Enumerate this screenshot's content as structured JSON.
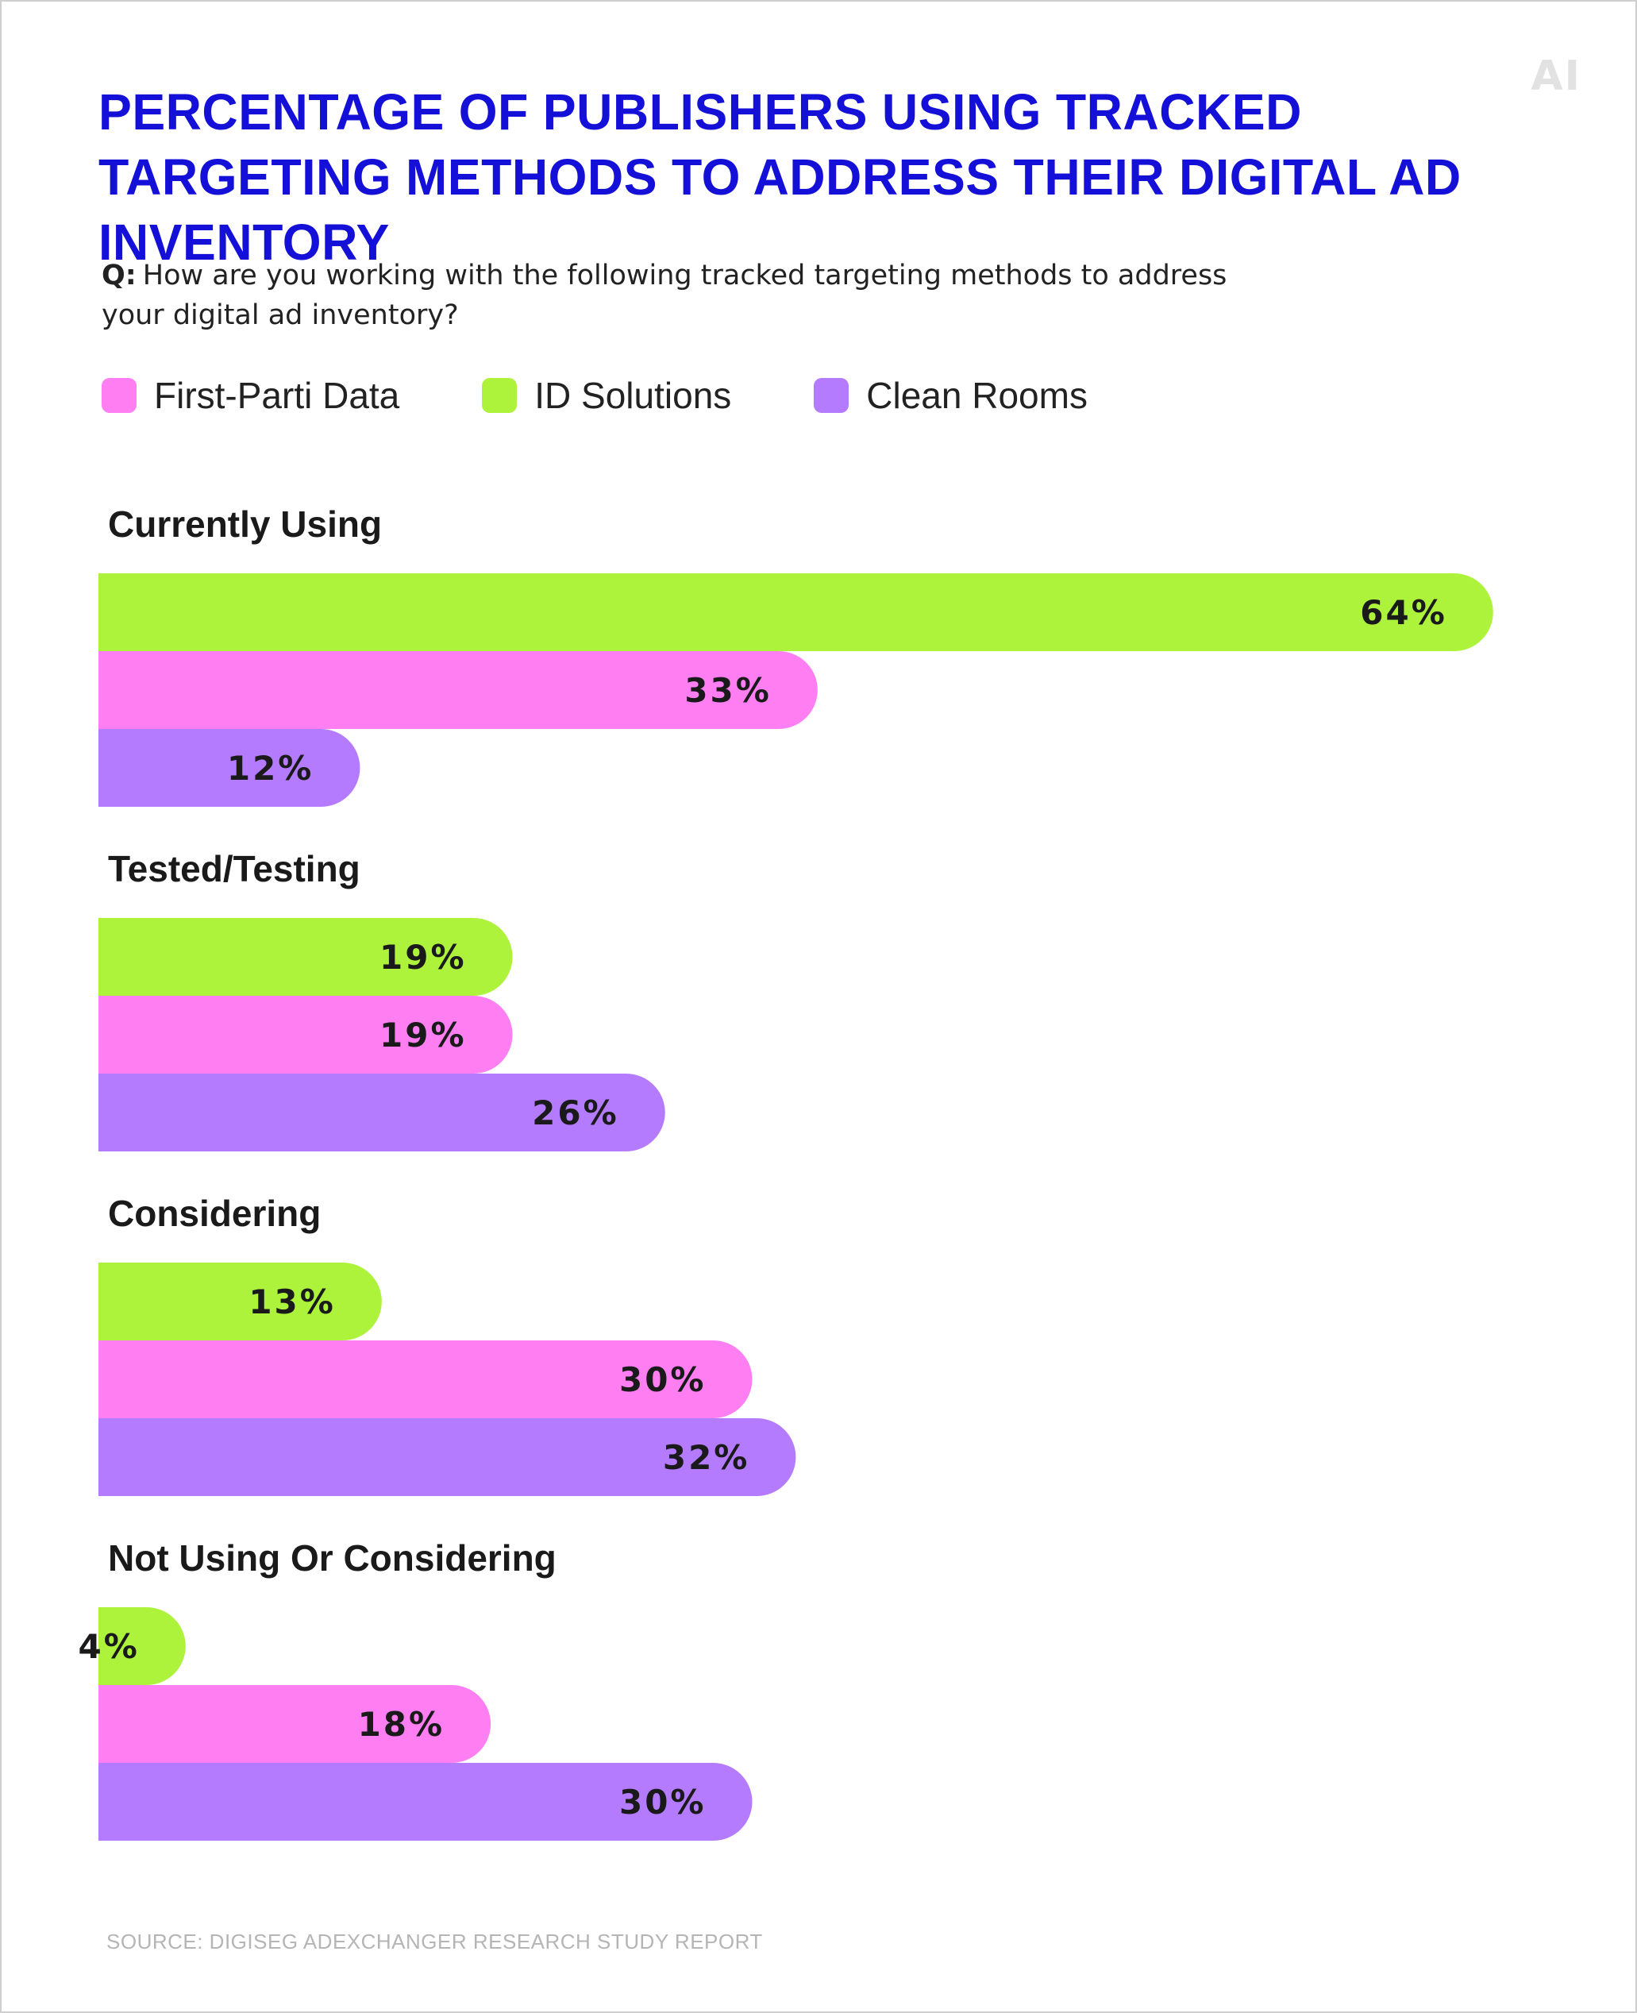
{
  "logo": "AI",
  "title": "PERCENTAGE OF PUBLISHERS USING TRACKED TARGETING METHODS TO ADDRESS THEIR DIGITAL AD INVENTORY",
  "question": {
    "prefix": "Q:",
    "text": "How are you working with the following tracked targeting methods to address your digital ad inventory?"
  },
  "source": "SOURCE: DIGISEG ADEXCHANGER RESEARCH STUDY REPORT",
  "colors": {
    "first_parti_data": "#ff7ef2",
    "id_solutions": "#adf23b",
    "clean_rooms": "#b57bff",
    "title": "#1410d8"
  },
  "chart_data": {
    "type": "bar",
    "orientation": "horizontal",
    "legend": [
      {
        "name": "First-Parti Data",
        "color": "#ff7ef2"
      },
      {
        "name": "ID Solutions",
        "color": "#adf23b"
      },
      {
        "name": "Clean Rooms",
        "color": "#b57bff"
      }
    ],
    "categories": [
      "Currently Using",
      "Tested/Testing",
      "Considering",
      "Not Using Or Considering"
    ],
    "series": [
      {
        "name": "ID Solutions",
        "color": "#adf23b",
        "values": [
          64,
          19,
          13,
          4
        ],
        "labels": [
          "64%",
          "19%",
          "13%",
          "4%"
        ]
      },
      {
        "name": "First-Parti Data",
        "color": "#ff7ef2",
        "values": [
          33,
          19,
          30,
          18
        ],
        "labels": [
          "33%",
          "19%",
          "30%",
          "18%"
        ]
      },
      {
        "name": "Clean Rooms",
        "color": "#b57bff",
        "values": [
          12,
          26,
          32,
          30
        ],
        "labels": [
          "12%",
          "26%",
          "32%",
          "30%"
        ]
      }
    ],
    "unit": "%",
    "xlim": [
      0,
      64
    ],
    "grid": false,
    "legend_placement": "top-left"
  }
}
